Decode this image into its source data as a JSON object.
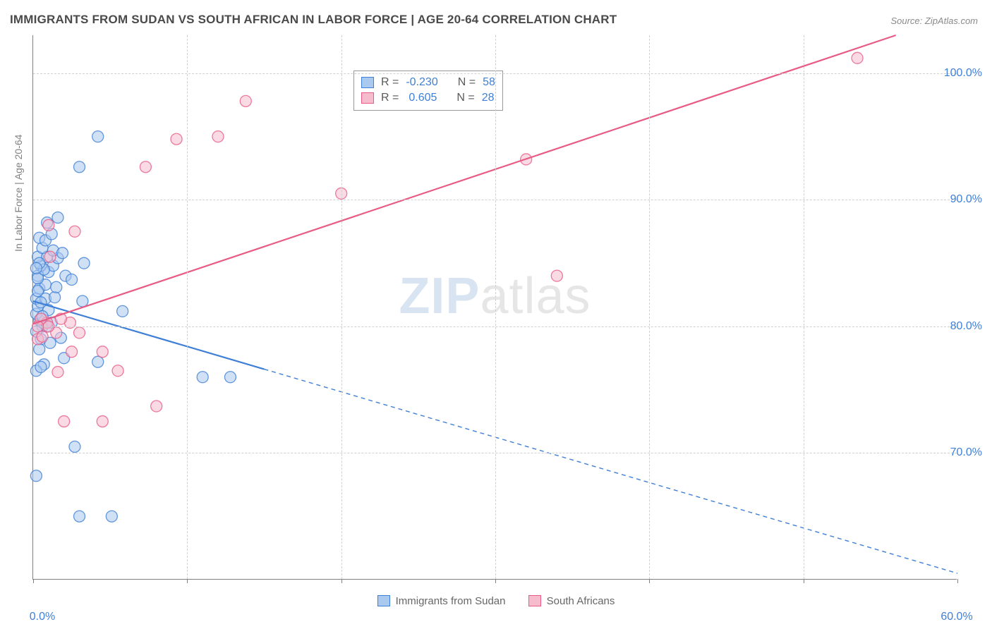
{
  "title": "IMMIGRANTS FROM SUDAN VS SOUTH AFRICAN IN LABOR FORCE | AGE 20-64 CORRELATION CHART",
  "source": "Source: ZipAtlas.com",
  "ylabel": "In Labor Force | Age 20-64",
  "watermark_zip": "ZIP",
  "watermark_atlas": "atlas",
  "chart": {
    "type": "scatter",
    "background_color": "#ffffff",
    "grid_color": "#d0d0d0",
    "axis_color": "#808080",
    "tick_color": "#3f7fd6",
    "xlim": [
      0,
      60
    ],
    "ylim": [
      60,
      103
    ],
    "x_ticks": [
      0,
      10,
      20,
      30,
      40,
      50,
      60
    ],
    "x_tick_labels": [
      "0.0%",
      "",
      "",
      "",
      "",
      "",
      "60.0%"
    ],
    "y_ticks": [
      70,
      80,
      90,
      100
    ],
    "y_tick_labels": [
      "70.0%",
      "80.0%",
      "90.0%",
      "100.0%"
    ],
    "marker_radius": 8,
    "marker_opacity": 0.55,
    "line_width_solid": 2.2,
    "line_width_dash": 1.4,
    "dash_pattern": "6,5",
    "series": [
      {
        "id": "sudan",
        "label": "Immigrants from Sudan",
        "color_stroke": "#3f7fd6",
        "color_fill": "#a9c9ef",
        "R": "-0.230",
        "N": "58",
        "trend": {
          "x1": 0,
          "y1": 82.0,
          "x2": 60,
          "y2": 60.5,
          "solid_until_x": 15
        },
        "points": [
          [
            0.2,
            68.2
          ],
          [
            3.0,
            65.0
          ],
          [
            5.1,
            65.0
          ],
          [
            2.7,
            70.5
          ],
          [
            0.7,
            77.0
          ],
          [
            2.0,
            77.5
          ],
          [
            4.2,
            77.2
          ],
          [
            0.4,
            80.5
          ],
          [
            0.6,
            80.0
          ],
          [
            1.2,
            80.3
          ],
          [
            0.2,
            81.0
          ],
          [
            0.3,
            81.6
          ],
          [
            1.0,
            81.3
          ],
          [
            0.2,
            82.2
          ],
          [
            0.8,
            82.2
          ],
          [
            1.4,
            82.3
          ],
          [
            3.2,
            82.0
          ],
          [
            5.8,
            81.2
          ],
          [
            0.4,
            83.0
          ],
          [
            0.8,
            83.3
          ],
          [
            1.5,
            83.1
          ],
          [
            0.3,
            84.0
          ],
          [
            1.0,
            84.3
          ],
          [
            2.1,
            84.0
          ],
          [
            0.5,
            84.8
          ],
          [
            1.3,
            84.8
          ],
          [
            0.3,
            85.5
          ],
          [
            0.9,
            85.5
          ],
          [
            1.6,
            85.4
          ],
          [
            3.3,
            85.0
          ],
          [
            0.6,
            86.2
          ],
          [
            1.3,
            86.0
          ],
          [
            0.4,
            87.0
          ],
          [
            0.9,
            88.2
          ],
          [
            1.6,
            88.6
          ],
          [
            3.0,
            92.6
          ],
          [
            4.2,
            95.0
          ],
          [
            11.0,
            76.0
          ],
          [
            12.8,
            76.0
          ],
          [
            0.5,
            79.0
          ],
          [
            1.8,
            79.1
          ],
          [
            2.5,
            83.7
          ],
          [
            0.6,
            80.8
          ],
          [
            0.4,
            78.2
          ],
          [
            0.2,
            79.6
          ],
          [
            1.1,
            78.7
          ],
          [
            0.2,
            76.5
          ],
          [
            0.5,
            76.8
          ],
          [
            0.3,
            83.8
          ],
          [
            0.7,
            84.5
          ],
          [
            1.9,
            85.8
          ],
          [
            0.8,
            86.8
          ],
          [
            0.3,
            82.8
          ],
          [
            0.9,
            80.0
          ],
          [
            0.4,
            85.0
          ],
          [
            1.2,
            87.3
          ],
          [
            0.5,
            81.9
          ],
          [
            0.2,
            84.6
          ]
        ]
      },
      {
        "id": "south_africans",
        "label": "South Africans",
        "color_stroke": "#e85b85",
        "color_fill": "#f6bccd",
        "R": "0.605",
        "N": "28",
        "trend": {
          "x1": 0,
          "y1": 80.2,
          "x2": 56,
          "y2": 103.0,
          "solid_until_x": 56
        },
        "points": [
          [
            0.3,
            79.0
          ],
          [
            0.9,
            80.3
          ],
          [
            1.5,
            79.5
          ],
          [
            2.4,
            80.3
          ],
          [
            1.0,
            80.0
          ],
          [
            0.5,
            80.6
          ],
          [
            0.3,
            80.0
          ],
          [
            1.8,
            80.6
          ],
          [
            3.0,
            79.5
          ],
          [
            0.6,
            79.2
          ],
          [
            2.5,
            78.0
          ],
          [
            4.5,
            78.0
          ],
          [
            1.6,
            76.4
          ],
          [
            5.5,
            76.5
          ],
          [
            2.0,
            72.5
          ],
          [
            4.5,
            72.5
          ],
          [
            8.0,
            73.7
          ],
          [
            2.7,
            87.5
          ],
          [
            1.1,
            85.5
          ],
          [
            1.0,
            88.0
          ],
          [
            7.3,
            92.6
          ],
          [
            9.3,
            94.8
          ],
          [
            13.8,
            97.8
          ],
          [
            12.0,
            95.0
          ],
          [
            20.0,
            90.5
          ],
          [
            32.0,
            93.2
          ],
          [
            34.0,
            84.0
          ],
          [
            53.5,
            101.2
          ]
        ]
      }
    ]
  },
  "legend_top": {
    "r_label": "R =",
    "n_label": "N ="
  },
  "legend_bottom": {
    "items": [
      "Immigrants from Sudan",
      "South Africans"
    ]
  }
}
